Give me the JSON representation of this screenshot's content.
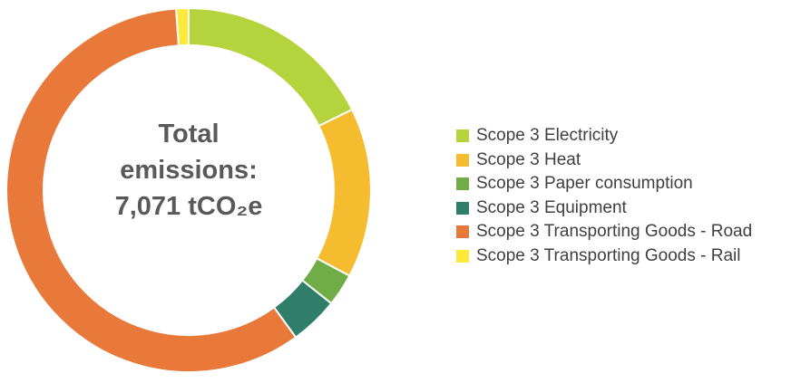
{
  "chart_data": {
    "type": "pie",
    "donut": true,
    "center_label": [
      "Total",
      "emissions:",
      "7,071 tCO₂e"
    ],
    "categories": [
      "Scope 3 Electricity",
      "Scope 3 Heat",
      "Scope 3 Paper consumption",
      "Scope 3 Equipment",
      "Scope 3 Transporting Goods - Road",
      "Scope 3 Transporting Goods - Rail"
    ],
    "values_percent": [
      17.7,
      15.1,
      2.9,
      4.3,
      58.9,
      1.1
    ],
    "colors": [
      "#b5d33d",
      "#f5bc2f",
      "#71ad47",
      "#2f7e6a",
      "#e8793a",
      "#fde93a"
    ],
    "legend_position": "right"
  }
}
